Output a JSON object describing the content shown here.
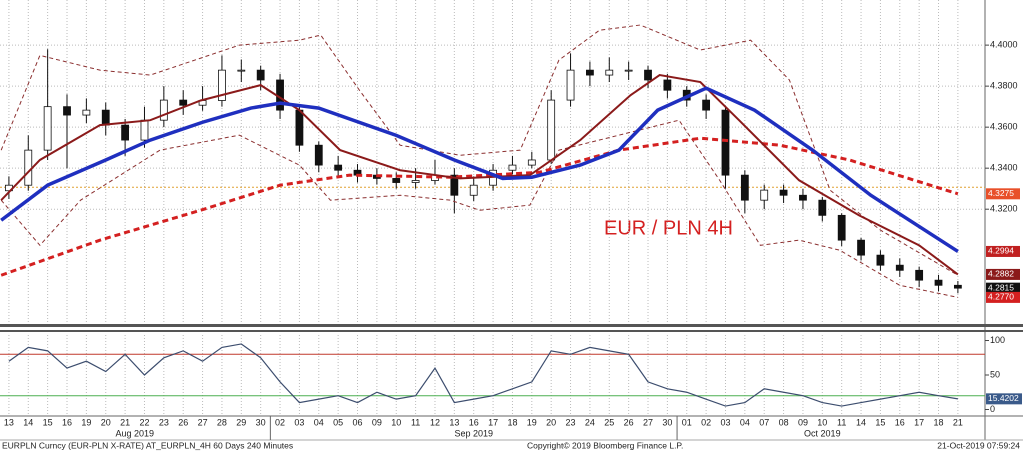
{
  "chart_data": {
    "type": "candlestick",
    "annotation": "EUR / PLN 4H",
    "categories": [
      "13",
      "14",
      "15",
      "16",
      "19",
      "20",
      "21",
      "22",
      "23",
      "26",
      "27",
      "28",
      "29",
      "30",
      "02",
      "03",
      "04",
      "05",
      "06",
      "09",
      "10",
      "11",
      "12",
      "13",
      "16",
      "17",
      "18",
      "19",
      "20",
      "23",
      "24",
      "25",
      "26",
      "27",
      "30",
      "01",
      "02",
      "03",
      "04",
      "07",
      "08",
      "09",
      "10",
      "11",
      "14",
      "15",
      "16",
      "17",
      "18",
      "21"
    ],
    "month_labels": [
      "Aug 2019",
      "Sep 2019",
      "Oct 2019"
    ],
    "open": [
      4.329,
      4.3317,
      4.3488,
      4.37,
      4.3659,
      4.3683,
      4.361,
      4.3537,
      4.3634,
      4.3732,
      4.3707,
      4.373,
      4.3878,
      4.3878,
      4.383,
      4.3683,
      4.3512,
      4.3415,
      4.339,
      4.3366,
      4.335,
      4.333,
      4.334,
      4.3366,
      4.3268,
      4.3317,
      4.339,
      4.3415,
      4.344,
      4.3732,
      4.3878,
      4.3854,
      4.3878,
      4.3878,
      4.383,
      4.378,
      4.3732,
      4.3683,
      4.3366,
      4.3244,
      4.3293,
      4.3268,
      4.3244,
      4.317,
      4.3049,
      4.2976,
      4.2927,
      4.2902,
      4.2854,
      4.2829
    ],
    "high": [
      4.336,
      4.356,
      4.398,
      4.376,
      4.374,
      4.372,
      4.364,
      4.37,
      4.38,
      4.378,
      4.38,
      4.395,
      4.393,
      4.39,
      4.386,
      4.37,
      4.353,
      4.346,
      4.342,
      4.34,
      4.338,
      4.34,
      4.344,
      4.34,
      4.336,
      4.342,
      4.346,
      4.348,
      4.378,
      4.396,
      4.392,
      4.394,
      4.392,
      4.39,
      4.386,
      4.38,
      4.376,
      4.37,
      4.339,
      4.332,
      4.332,
      4.33,
      4.326,
      4.318,
      4.306,
      4.3,
      4.296,
      4.292,
      4.288,
      4.285
    ],
    "low": [
      4.325,
      4.329,
      4.344,
      4.34,
      4.362,
      4.356,
      4.346,
      4.35,
      4.36,
      4.366,
      4.368,
      4.37,
      4.382,
      4.378,
      4.364,
      4.348,
      4.338,
      4.336,
      4.333,
      4.332,
      4.33,
      4.33,
      4.332,
      4.318,
      4.324,
      4.329,
      4.337,
      4.34,
      4.342,
      4.37,
      4.38,
      4.382,
      4.383,
      4.379,
      4.374,
      4.37,
      4.364,
      4.33,
      4.318,
      4.32,
      4.323,
      4.32,
      4.314,
      4.302,
      4.295,
      4.29,
      4.287,
      4.282,
      4.28,
      4.279
    ],
    "close": [
      4.3317,
      4.3488,
      4.37,
      4.3659,
      4.3683,
      4.361,
      4.3537,
      4.3634,
      4.3732,
      4.3707,
      4.373,
      4.3878,
      4.3878,
      4.383,
      4.3683,
      4.3512,
      4.3415,
      4.339,
      4.3366,
      4.335,
      4.333,
      4.334,
      4.3366,
      4.3268,
      4.3317,
      4.339,
      4.3415,
      4.344,
      4.3732,
      4.3878,
      4.3854,
      4.3878,
      4.3878,
      4.383,
      4.378,
      4.3732,
      4.3683,
      4.3366,
      4.3244,
      4.3293,
      4.3268,
      4.3244,
      4.317,
      4.3049,
      4.2976,
      4.2927,
      4.2902,
      4.2854,
      4.2829,
      4.2815
    ],
    "lines": [
      {
        "color": "#8b2f2f",
        "style": "dashed-thin",
        "x": [
          -0.4,
          1.6,
          4.7,
          7.3,
          11.9,
          15,
          16.1,
          18.1,
          20.2,
          23.3,
          26.4,
          28.4,
          30.5,
          32.6,
          35.7,
          38.3,
          40.3,
          42.4,
          45,
          49
        ],
        "values": [
          4.3488,
          4.395,
          4.3878,
          4.3854,
          4.4,
          4.4024,
          4.4049,
          4.378,
          4.3512,
          4.3463,
          4.3488,
          4.3927,
          4.4073,
          4.4098,
          4.3976,
          4.4024,
          4.383,
          4.3293,
          4.3098,
          4.2878
        ]
      },
      {
        "color": "#8b2f2f",
        "style": "dashed-thin",
        "x": [
          -0.4,
          1.6,
          3.7,
          7.8,
          11.9,
          15,
          16.6,
          20.2,
          22.8,
          24.3,
          26.9,
          28.4,
          31.5,
          34.6,
          36.7,
          38.8,
          40.8,
          42.9,
          46,
          49
        ],
        "values": [
          4.3244,
          4.3024,
          4.3244,
          4.3488,
          4.3561,
          4.3415,
          4.3244,
          4.3268,
          4.3244,
          4.3195,
          4.322,
          4.3488,
          4.3561,
          4.3634,
          4.3341,
          4.3024,
          4.3049,
          4.3,
          4.2829,
          4.277
        ]
      },
      {
        "color": "#d42020",
        "style": "dashed-thick",
        "x": [
          -0.4,
          4.7,
          9.9,
          14,
          17.6,
          22.8,
          27.4,
          31.5,
          35.7,
          39.8,
          43.4,
          49
        ],
        "values": [
          4.2878,
          4.3049,
          4.3195,
          4.3317,
          4.3366,
          4.3356,
          4.338,
          4.3488,
          4.3546,
          4.3512,
          4.344,
          4.3275
        ]
      },
      {
        "color": "#8b1a1a",
        "style": "solid",
        "x": [
          -0.4,
          1.6,
          4.7,
          7.3,
          9.9,
          13,
          15,
          17.1,
          20.2,
          23.3,
          26.9,
          29.5,
          32.1,
          33.6,
          35.7,
          37.7,
          40.8,
          43.9,
          47,
          49
        ],
        "values": [
          4.3244,
          4.344,
          4.361,
          4.3634,
          4.373,
          4.3805,
          4.3683,
          4.3488,
          4.339,
          4.335,
          4.3366,
          4.3537,
          4.3756,
          4.3854,
          4.382,
          4.3634,
          4.3341,
          4.317,
          4.3024,
          4.2882
        ]
      },
      {
        "color": "#1f2fbf",
        "style": "thick",
        "x": [
          -0.4,
          2,
          5,
          7.3,
          10,
          12.5,
          14,
          16,
          20,
          23,
          25.5,
          27,
          29.5,
          31.5,
          33.5,
          36,
          38.5,
          41.5,
          44.5,
          49
        ],
        "values": [
          4.3146,
          4.3317,
          4.344,
          4.3537,
          4.3624,
          4.3693,
          4.3717,
          4.3693,
          4.356,
          4.344,
          4.335,
          4.3356,
          4.3415,
          4.3488,
          4.3683,
          4.379,
          4.3683,
          4.3488,
          4.3268,
          4.2994
        ]
      }
    ],
    "reference_line": 4.3307,
    "reference_color": "#e0a030",
    "xlim": [
      -0.46,
      50.4
    ],
    "ylim": [
      4.265,
      4.422
    ],
    "yticks": [
      {
        "value": 4.32,
        "label": "4.3200"
      },
      {
        "value": 4.34,
        "label": "4.3400"
      },
      {
        "value": 4.36,
        "label": "4.3600"
      },
      {
        "value": 4.38,
        "label": "4.3800"
      },
      {
        "value": 4.4,
        "label": "4.4000"
      }
    ],
    "grid": true,
    "price_markers": [
      {
        "value": 4.3275,
        "label": "4.3275",
        "color": "#e8502a"
      },
      {
        "value": 4.2994,
        "label": "4.2994",
        "color": "#c02020"
      },
      {
        "value": 4.2882,
        "label": "4.2882",
        "color": "#8b1a1a"
      },
      {
        "value": 4.2815,
        "label": "4.2815",
        "color": "#111111"
      },
      {
        "value": 4.277,
        "label": "4.2770",
        "color": "#d42020"
      }
    ],
    "oscillator": {
      "color": "#3c4d6e",
      "ylim": [
        -8,
        108
      ],
      "yticks": [
        0,
        50,
        100
      ],
      "levels": [
        {
          "value": 80,
          "color": "#c0392b"
        },
        {
          "value": 20,
          "color": "#4caf50"
        }
      ],
      "values": [
        70,
        90,
        85,
        60,
        70,
        55,
        80,
        50,
        75,
        85,
        70,
        90,
        95,
        75,
        40,
        10,
        15,
        20,
        10,
        25,
        15,
        20,
        60,
        10,
        15,
        20,
        30,
        40,
        85,
        80,
        90,
        85,
        80,
        40,
        30,
        25,
        15,
        5,
        10,
        30,
        25,
        20,
        10,
        5,
        10,
        15,
        20,
        25,
        20,
        15.4202
      ],
      "marker_color": "#3a5a8a"
    },
    "footer": {
      "left": "EURPLN Curncy (EUR-PLN X-RATE) AT_EURPLN_4H 60 Days 240 Minutes",
      "center": "Copyright© 2019 Bloomberg Finance L.P.",
      "right": "21-Oct-2019 07:59:24"
    }
  }
}
